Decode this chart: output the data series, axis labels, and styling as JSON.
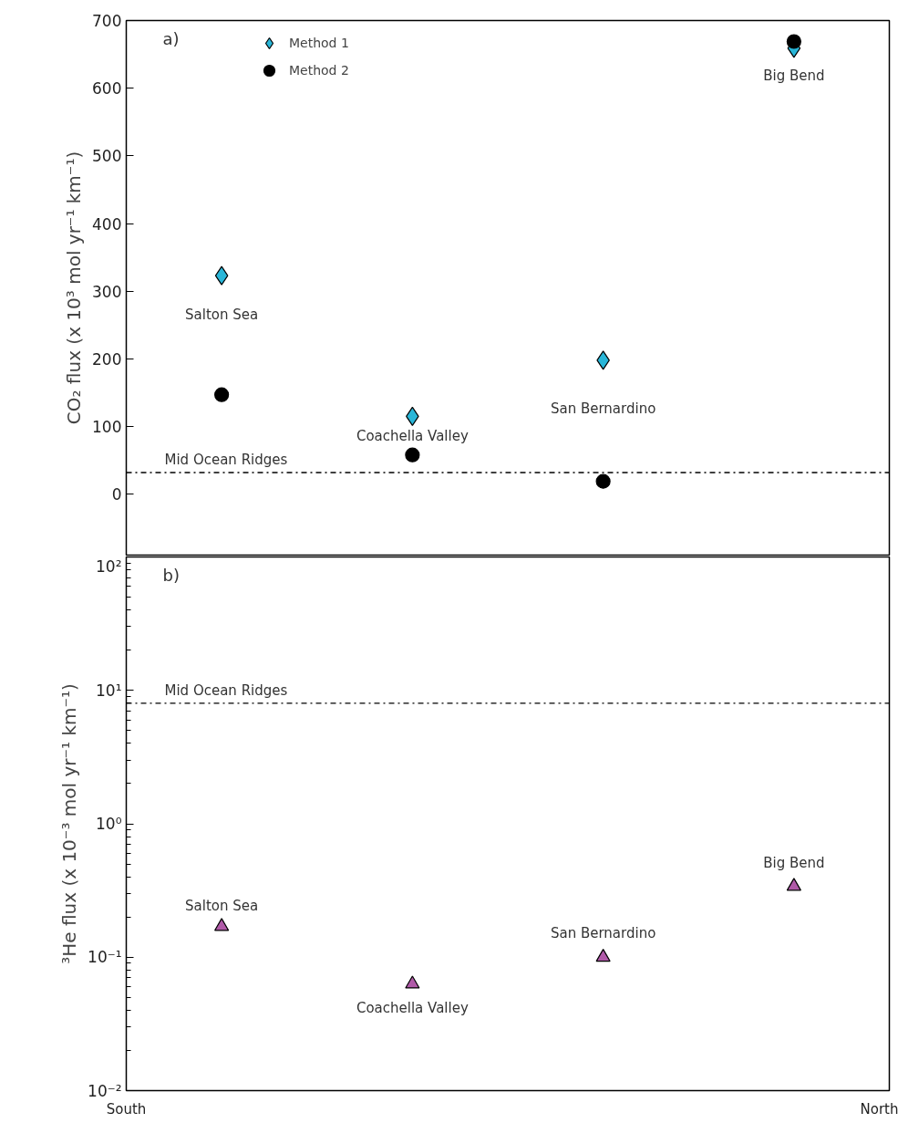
{
  "chart_data": [
    {
      "type": "scatter",
      "categories": [
        null,
        null,
        null,
        null
      ],
      "tick_labels": "y",
      "ylabel": "CO₂ flux (x 10³ mol yr⁻¹ km⁻¹)",
      "ylim": [
        -90,
        700
      ],
      "yticks": [
        0,
        100,
        200,
        300,
        400,
        500,
        600,
        700
      ],
      "legend": "top left",
      "grid": false,
      "series": [
        {
          "name": "Method 1",
          "color": "#29b6d8",
          "marker": "diamond",
          "values": [
            323,
            115,
            198,
            659
          ]
        },
        {
          "name": "Method 2",
          "color": "#000000",
          "marker": "circle",
          "values": [
            147,
            58,
            19,
            669
          ]
        }
      ],
      "ref_lines": [
        {
          "axis": "y",
          "value": 32,
          "label": "Mid Ocean Ridges",
          "line_style": "dashdot",
          "color": "#000000"
        }
      ],
      "annotations": [
        "a)",
        "Salton Sea",
        "Coachella Valley",
        "San Bernardino",
        "Big Bend"
      ]
    },
    {
      "type": "scatter",
      "categories": [
        null,
        null,
        null,
        null
      ],
      "ylabel": "³He flux (x 10⁻³ mol yr⁻¹ km⁻¹)",
      "log": true,
      "ylim": [
        0.01,
        100
      ],
      "yticks": [
        {
          "value": 0.01,
          "label": "10⁻²"
        },
        {
          "value": 0.1,
          "label": "10⁻¹"
        },
        {
          "value": 1,
          "label": "10⁰"
        },
        {
          "value": 10,
          "label": "10¹"
        },
        {
          "value": 100,
          "label": "10²"
        }
      ],
      "grid": false,
      "series": [
        {
          "color": "#b05aa8",
          "marker": "triangle",
          "values": [
            0.17,
            0.063,
            0.1,
            0.34
          ]
        }
      ],
      "ref_lines": [
        {
          "axis": "y",
          "value": 8,
          "label": "Mid Ocean Ridges",
          "line_style": "dashdot",
          "color": "#000000"
        }
      ],
      "annotations": [
        "b)",
        "Salton Sea",
        "Coachella Valley",
        "San Bernardino",
        "Big Bend",
        "South",
        "North"
      ]
    }
  ]
}
